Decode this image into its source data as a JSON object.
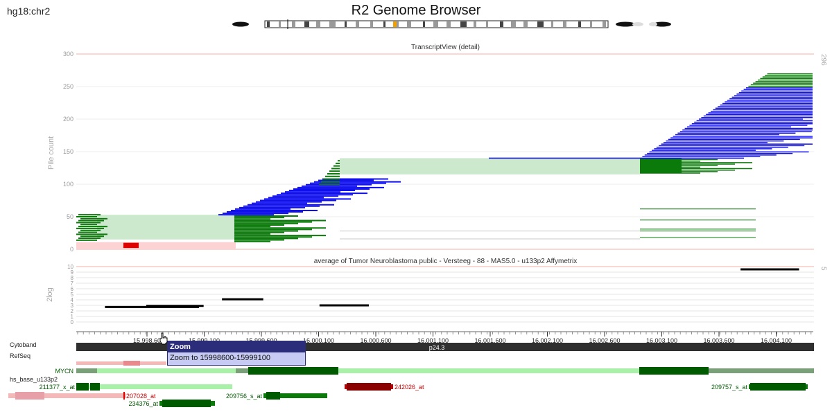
{
  "header": {
    "assembly": "hg18:chr2",
    "title": "R2 Genome Browser"
  },
  "colors": {
    "pos_strand": "#0b7a0b",
    "neg_strand": "#1010ee",
    "intron_fill": "#cde9cd",
    "red_track": "#e00000",
    "pink_track": "#f4b8b8",
    "gene_light": "#a9f0a9",
    "gene_dark": "#005a00",
    "cytoband": "#2f2f2f",
    "tooltip_bg": "#c7cbf3",
    "tooltip_head": "#2b2d7a"
  },
  "transcript_panel": {
    "title": "TranscriptView (detail)",
    "ylabel": "Pile count",
    "yticks": [
      "0",
      "50",
      "100",
      "150",
      "200",
      "250",
      "300"
    ],
    "right_label": "296"
  },
  "expression_panel": {
    "title": "average of Tumor Neuroblastoma public - Versteeg - 88 - MAS5.0 - u133p2 Affymetrix",
    "ylabel": "2log",
    "yticks": [
      "0",
      "1",
      "2",
      "3",
      "4",
      "5",
      "6",
      "7",
      "8",
      "9",
      "10"
    ],
    "right_label": "5"
  },
  "genomic_axis": {
    "labels": [
      "15,998,60",
      "15,999,100",
      "15,999,600",
      "16,000,100",
      "16,000,600",
      "16,001,100",
      "16,001,600",
      "16,002,100",
      "16,002,600",
      "16,003,100",
      "16,003,600",
      "16,004,100"
    ]
  },
  "tracks": {
    "cytoband_label": "Cytoband",
    "cytoband_name": "p24.3",
    "refseq_label": "RefSeq",
    "gene_name": "MYCN",
    "probe_track_label": "hs_base_u133p2",
    "probes": [
      "211377_x_at",
      "207028_at",
      "209756_s_at",
      "234376_at",
      "242026_at",
      "209757_s_at"
    ]
  },
  "tooltip": {
    "title": "Zoom",
    "text": "Zoom to 15998600-15999100"
  },
  "chart_data": {
    "type": "line",
    "title": "average of Tumor Neuroblastoma public - Versteeg - 88 - MAS5.0 - u133p2 Affymetrix",
    "ylabel": "2log",
    "ylim": [
      0,
      10
    ],
    "series": [
      {
        "name": "211377_x_at",
        "x": [
          15998400,
          15999220
        ],
        "values": [
          2.7,
          2.7
        ]
      },
      {
        "name": "",
        "x": [
          15998760,
          15999260
        ],
        "values": [
          2.9,
          2.9
        ]
      },
      {
        "name": "209756_s_at",
        "x": [
          15999420,
          15999780
        ],
        "values": [
          4.1,
          4.1
        ]
      },
      {
        "name": "242026_at",
        "x": [
          16000270,
          16000700
        ],
        "values": [
          3.0,
          3.0
        ]
      },
      {
        "name": "209757_s_at",
        "x": [
          16003940,
          16004450
        ],
        "values": [
          9.5,
          9.5
        ]
      }
    ]
  }
}
